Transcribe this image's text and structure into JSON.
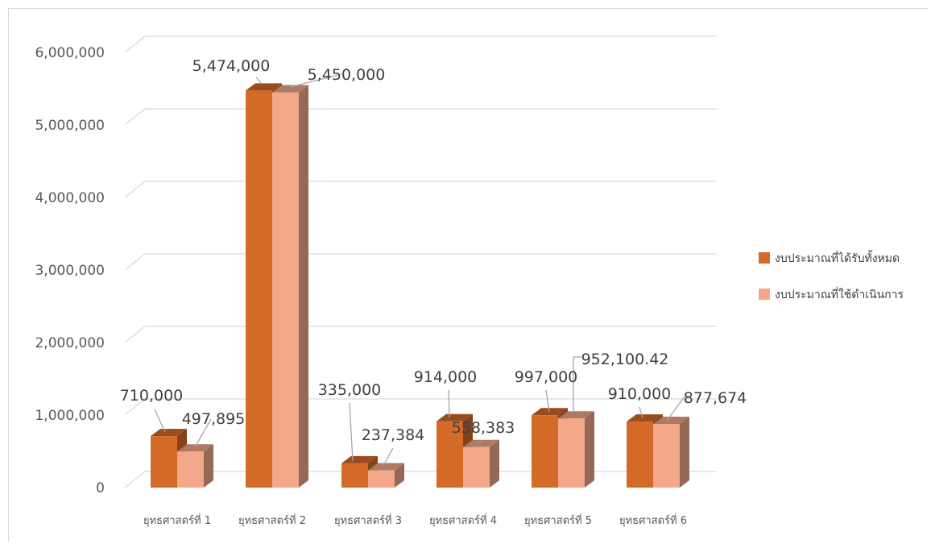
{
  "chart_data": {
    "type": "bar",
    "title": "",
    "xlabel": "",
    "ylabel": "",
    "ylim": [
      0,
      6000000
    ],
    "yticks": [
      0,
      1000000,
      2000000,
      3000000,
      4000000,
      5000000,
      6000000
    ],
    "ytick_labels": [
      "0",
      "1,000,000",
      "2,000,000",
      "3,000,000",
      "4,000,000",
      "5,000,000",
      "6,000,000"
    ],
    "grid": true,
    "legend_position": "right",
    "categories": [
      "ยุทธศาสตร์ที่ 1",
      "ยุทธศาสตร์ที่ 2",
      "ยุทธศาสตร์ที่ 3",
      "ยุทธศาสตร์ที่ 4",
      "ยุทธศาสตร์ที่ 5",
      "ยุทธศาสตร์ที่ 6"
    ],
    "series": [
      {
        "name": "งบประมาณที่ได้รับทั้งหมด",
        "color": "#d46a28",
        "values": [
          710000,
          5474000,
          335000,
          914000,
          997000,
          910000
        ],
        "labels": [
          "710,000",
          "5,474,000",
          "335,000",
          "914,000",
          "997,000",
          "910,000"
        ]
      },
      {
        "name": "งบประมาณที่ใช้ดำเนินการ",
        "color": "#f3a889",
        "values": [
          497895,
          5450000,
          237384,
          558383,
          952100.42,
          877674
        ],
        "labels": [
          "497,895",
          "5,450,000",
          "237,384",
          "558,383",
          "952,100.42",
          "877,674"
        ]
      }
    ]
  }
}
